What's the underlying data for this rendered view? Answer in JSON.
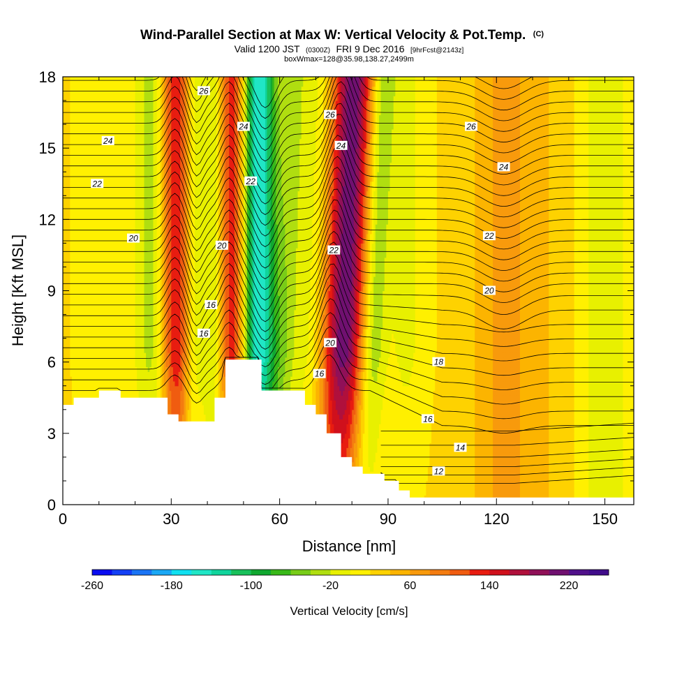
{
  "title": {
    "main": "Wind-Parallel Section at Max W: Vertical Velocity & Pot.Temp.",
    "mark": "(C)",
    "line2_a": "Valid 1200 JST",
    "line2_b": "(0300Z)",
    "line2_c": "FRI 9 Dec 2016",
    "line2_d": "[9hrFcst@2143z]",
    "line3": "boxWmax=128@35.98,138.27,2499m"
  },
  "chart_data": {
    "type": "heatmap",
    "xlabel": "Distance [nm]",
    "ylabel": "Height [Kft MSL]",
    "xlim": [
      0,
      158
    ],
    "ylim": [
      0,
      18
    ],
    "xticks": [
      0,
      30,
      60,
      90,
      120,
      150
    ],
    "yticks": [
      0,
      3,
      6,
      9,
      12,
      15,
      18
    ],
    "colorbar": {
      "title": "Vertical Velocity [cm/s]",
      "min": -260,
      "max": 260,
      "step": 20,
      "labels": [
        -260,
        -180,
        -100,
        -20,
        60,
        140,
        220
      ],
      "colors": [
        "#0a0cf0",
        "#1440f5",
        "#1a74f5",
        "#1aa8f5",
        "#10e0f0",
        "#20e6c6",
        "#10d49c",
        "#18c05a",
        "#10a830",
        "#38b818",
        "#78cc18",
        "#b0de10",
        "#e8f000",
        "#fff000",
        "#fed200",
        "#fcb400",
        "#f89a0c",
        "#f47c10",
        "#f05c10",
        "#e81c10",
        "#d0101c",
        "#b0103c",
        "#901058",
        "#701070",
        "#50108a",
        "#400c8a"
      ]
    },
    "terrain": [
      [
        0,
        4.2
      ],
      [
        3,
        4.2
      ],
      [
        3,
        4.5
      ],
      [
        10,
        4.5
      ],
      [
        10,
        4.8
      ],
      [
        16,
        4.8
      ],
      [
        16,
        4.5
      ],
      [
        29,
        4.5
      ],
      [
        29,
        3.8
      ],
      [
        32,
        3.8
      ],
      [
        32,
        3.5
      ],
      [
        42,
        3.5
      ],
      [
        42,
        4.5
      ],
      [
        45,
        4.5
      ],
      [
        45,
        6.1
      ],
      [
        55,
        6.1
      ],
      [
        55,
        4.8
      ],
      [
        67,
        4.8
      ],
      [
        67,
        4.2
      ],
      [
        70,
        4.2
      ],
      [
        70,
        3.8
      ],
      [
        73,
        3.8
      ],
      [
        73,
        3.0
      ],
      [
        77,
        3.0
      ],
      [
        77,
        2.0
      ],
      [
        80,
        2.0
      ],
      [
        80,
        1.6
      ],
      [
        83,
        1.6
      ],
      [
        83,
        1.3
      ],
      [
        89,
        1.3
      ],
      [
        89,
        1.0
      ],
      [
        93,
        1.0
      ],
      [
        93,
        0.6
      ],
      [
        96,
        0.6
      ],
      [
        96,
        0.3
      ],
      [
        158,
        0.3
      ]
    ],
    "velocity_bands": [
      {
        "center": 7,
        "width": 4,
        "value": -10
      },
      {
        "center": 17,
        "width": 6,
        "value": -15
      },
      {
        "center": 25,
        "width": 3,
        "value": -50
      },
      {
        "center": 31.5,
        "width": 3,
        "value": 130
      },
      {
        "center": 36,
        "width": 2.5,
        "value": -60
      },
      {
        "center": 39,
        "width": 2,
        "value": 20
      },
      {
        "center": 42,
        "width": 2.5,
        "value": -70
      },
      {
        "center": 47,
        "width": 3,
        "value": 140
      },
      {
        "center": 54,
        "width": 3.5,
        "value": -190
      },
      {
        "center": 61,
        "width": 3,
        "value": -50
      },
      {
        "center": 68,
        "width": 2.5,
        "value": -30
      },
      {
        "center": 77,
        "width": 4,
        "value": 190
      },
      {
        "center": 85,
        "width": 2.5,
        "value": -70
      },
      {
        "center": 95,
        "width": 4,
        "value": -30
      },
      {
        "center": 110,
        "width": 5,
        "value": -15
      },
      {
        "center": 122,
        "width": 9,
        "value": 40
      },
      {
        "center": 150,
        "width": 5,
        "value": -40
      }
    ],
    "theta_labels": [
      {
        "text": "26",
        "x": 39,
        "y": 17.4
      },
      {
        "text": "24",
        "x": 12.5,
        "y": 15.3
      },
      {
        "text": "24",
        "x": 50,
        "y": 15.9
      },
      {
        "text": "26",
        "x": 74,
        "y": 16.4
      },
      {
        "text": "24",
        "x": 77,
        "y": 15.1
      },
      {
        "text": "26",
        "x": 113,
        "y": 15.9
      },
      {
        "text": "24",
        "x": 122,
        "y": 14.2
      },
      {
        "text": "22",
        "x": 9.5,
        "y": 13.5
      },
      {
        "text": "22",
        "x": 52,
        "y": 13.6
      },
      {
        "text": "20",
        "x": 19.5,
        "y": 11.2
      },
      {
        "text": "20",
        "x": 44,
        "y": 10.9
      },
      {
        "text": "22",
        "x": 75,
        "y": 10.7
      },
      {
        "text": "22",
        "x": 118,
        "y": 11.3
      },
      {
        "text": "20",
        "x": 118,
        "y": 9.0
      },
      {
        "text": "16",
        "x": 41,
        "y": 8.4
      },
      {
        "text": "16",
        "x": 39,
        "y": 7.2
      },
      {
        "text": "20",
        "x": 74,
        "y": 6.8
      },
      {
        "text": "18",
        "x": 104,
        "y": 6.0
      },
      {
        "text": "16",
        "x": 71,
        "y": 5.5
      },
      {
        "text": "16",
        "x": 101,
        "y": 3.6
      },
      {
        "text": "14",
        "x": 110,
        "y": 2.4
      },
      {
        "text": "12",
        "x": 104,
        "y": 1.4
      }
    ]
  }
}
